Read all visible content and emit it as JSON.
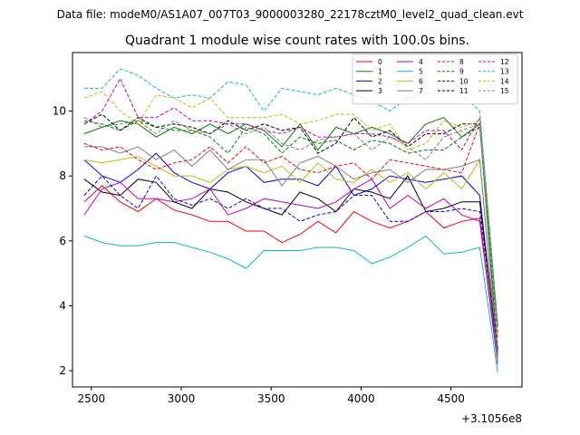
{
  "header": {
    "filename": "Data file: modeM0/AS1A07_007T03_9000003280_22178cztM0_level2_quad_clean.evt"
  },
  "chart_data": {
    "type": "line",
    "title": "Quadrant 1 module wise count rates with 100.0s bins.",
    "xlabel": "",
    "ylabel": "",
    "x_offset_label": "+3.1056e8",
    "xlim": [
      2395,
      4895
    ],
    "ylim": [
      1.5,
      11.8
    ],
    "xticks": [
      2500,
      3000,
      3500,
      4000,
      4500
    ],
    "yticks": [
      2,
      4,
      6,
      8,
      10
    ],
    "grid": false,
    "legend_position": "top-right",
    "legend_columns": 4,
    "x": [
      2460,
      2560,
      2660,
      2760,
      2860,
      2960,
      3060,
      3160,
      3260,
      3360,
      3460,
      3560,
      3660,
      3760,
      3860,
      3960,
      4060,
      4160,
      4260,
      4360,
      4460,
      4560,
      4660,
      4760
    ],
    "series": [
      {
        "name": "0",
        "color": "#ff0000",
        "dash": "solid",
        "values": [
          7.2,
          7.7,
          7.2,
          6.9,
          7.3,
          6.95,
          6.8,
          6.6,
          6.6,
          6.3,
          6.3,
          5.95,
          6.2,
          6.6,
          6.25,
          6.9,
          6.6,
          6.4,
          6.6,
          6.9,
          6.4,
          6.6,
          6.7,
          2.3
        ]
      },
      {
        "name": "1",
        "color": "#008000",
        "dash": "solid",
        "values": [
          9.3,
          9.5,
          9.7,
          9.6,
          9.2,
          9.5,
          9.3,
          9.6,
          9.3,
          9.6,
          9.4,
          8.9,
          9.6,
          8.8,
          9.5,
          9.3,
          9.5,
          9.3,
          9.0,
          9.6,
          9.8,
          9.2,
          9.6,
          2.5
        ]
      },
      {
        "name": "2",
        "color": "#0000ff",
        "dash": "solid",
        "values": [
          8.5,
          8.0,
          7.8,
          8.2,
          8.7,
          8.1,
          7.8,
          7.6,
          8.1,
          8.3,
          7.8,
          7.9,
          7.9,
          7.7,
          8.3,
          7.4,
          7.6,
          8.0,
          7.9,
          7.8,
          7.9,
          8.0,
          7.4,
          2.4
        ]
      },
      {
        "name": "3",
        "color": "#000000",
        "dash": "solid",
        "values": [
          7.9,
          7.5,
          7.4,
          7.9,
          7.8,
          7.2,
          7.0,
          7.6,
          7.5,
          7.2,
          7.0,
          6.8,
          7.5,
          7.3,
          6.9,
          7.6,
          7.5,
          7.3,
          8.0,
          6.9,
          7.0,
          7.2,
          7.2,
          2.6
        ]
      },
      {
        "name": "4",
        "color": "#bf00bf",
        "dash": "solid",
        "values": [
          6.8,
          7.6,
          7.8,
          7.3,
          7.3,
          7.2,
          7.3,
          7.6,
          6.8,
          7.0,
          7.3,
          7.2,
          7.1,
          7.0,
          7.2,
          7.6,
          7.9,
          7.0,
          7.4,
          7.0,
          7.3,
          6.8,
          6.6,
          2.2
        ]
      },
      {
        "name": "5",
        "color": "#00bfbf",
        "dash": "solid",
        "values": [
          6.15,
          5.95,
          5.85,
          5.85,
          5.95,
          5.95,
          5.8,
          5.65,
          5.45,
          5.15,
          5.7,
          5.7,
          5.7,
          5.8,
          5.8,
          5.7,
          5.3,
          5.5,
          5.8,
          6.15,
          5.6,
          5.65,
          5.8,
          1.95
        ]
      },
      {
        "name": "6",
        "color": "#bfbf00",
        "dash": "solid",
        "values": [
          8.5,
          8.4,
          8.5,
          8.6,
          8.3,
          8.0,
          8.0,
          7.8,
          8.2,
          8.3,
          8.1,
          8.3,
          7.8,
          8.4,
          7.9,
          7.8,
          8.2,
          7.8,
          8.1,
          7.6,
          8.1,
          7.6,
          8.5,
          2.3
        ]
      },
      {
        "name": "7",
        "color": "#808080",
        "dash": "solid",
        "values": [
          8.9,
          8.9,
          8.7,
          8.9,
          8.5,
          8.8,
          8.3,
          8.8,
          8.2,
          8.5,
          8.5,
          7.7,
          8.4,
          8.6,
          8.3,
          7.9,
          8.1,
          8.2,
          7.8,
          8.2,
          8.2,
          8.3,
          8.5,
          2.4
        ]
      },
      {
        "name": "8",
        "color": "#ff0000",
        "dash": "dashed",
        "values": [
          9.0,
          8.8,
          8.9,
          8.5,
          8.2,
          8.4,
          8.5,
          8.9,
          8.4,
          8.9,
          8.4,
          8.6,
          8.2,
          8.1,
          8.3,
          8.4,
          7.9,
          8.5,
          8.4,
          8.3,
          8.2,
          8.1,
          9.6,
          3.0
        ]
      },
      {
        "name": "9",
        "color": "#008000",
        "dash": "dashed",
        "values": [
          9.7,
          9.6,
          9.4,
          9.7,
          9.5,
          9.4,
          9.4,
          9.2,
          8.7,
          9.5,
          9.3,
          8.7,
          9.2,
          9.0,
          9.1,
          8.8,
          9.1,
          9.0,
          8.7,
          8.8,
          8.8,
          9.2,
          9.5,
          3.1
        ]
      },
      {
        "name": "10",
        "color": "#0000ff",
        "dash": "dashed",
        "values": [
          7.4,
          8.0,
          7.4,
          7.0,
          8.0,
          7.3,
          7.1,
          7.3,
          7.0,
          7.3,
          7.0,
          7.0,
          6.6,
          6.8,
          6.9,
          7.4,
          7.4,
          6.6,
          6.6,
          6.9,
          6.9,
          7.0,
          6.9,
          2.7
        ]
      },
      {
        "name": "11",
        "color": "#000000",
        "dash": "dashed",
        "values": [
          9.6,
          9.9,
          9.4,
          9.8,
          9.5,
          9.6,
          9.5,
          9.3,
          9.7,
          9.4,
          9.6,
          9.4,
          9.5,
          8.7,
          9.0,
          9.8,
          9.2,
          9.4,
          8.9,
          9.3,
          9.3,
          9.6,
          9.6,
          3.3
        ]
      },
      {
        "name": "12",
        "color": "#bf00bf",
        "dash": "dashed",
        "values": [
          9.6,
          10.0,
          11.0,
          9.8,
          9.8,
          10.1,
          9.7,
          9.7,
          9.6,
          9.6,
          9.4,
          9.3,
          9.5,
          9.2,
          9.2,
          9.3,
          9.3,
          9.2,
          9.0,
          9.4,
          9.4,
          8.8,
          9.8,
          3.4
        ]
      },
      {
        "name": "13",
        "color": "#00bfbf",
        "dash": "dashed",
        "values": [
          10.7,
          10.7,
          11.3,
          11.1,
          10.7,
          10.4,
          10.5,
          10.4,
          10.9,
          10.8,
          10.0,
          10.7,
          10.6,
          10.5,
          10.7,
          10.5,
          10.3,
          10.0,
          10.4,
          10.5,
          10.7,
          10.5,
          10.0,
          3.4
        ]
      },
      {
        "name": "14",
        "color": "#bfbf00",
        "dash": "dashed",
        "values": [
          10.4,
          10.6,
          10.0,
          9.6,
          10.5,
          10.4,
          10.1,
          10.4,
          9.8,
          9.8,
          9.8,
          9.9,
          9.6,
          9.7,
          9.9,
          9.9,
          9.4,
          9.6,
          8.8,
          9.0,
          9.7,
          9.5,
          9.7,
          3.0
        ]
      },
      {
        "name": "15",
        "color": "#808080",
        "dash": "dashed",
        "values": [
          9.8,
          9.5,
          9.6,
          9.7,
          9.3,
          9.7,
          9.4,
          9.3,
          9.6,
          9.3,
          9.5,
          9.0,
          8.8,
          9.1,
          9.2,
          9.3,
          8.8,
          9.2,
          8.9,
          8.5,
          9.2,
          9.4,
          9.6,
          3.2
        ]
      }
    ]
  }
}
